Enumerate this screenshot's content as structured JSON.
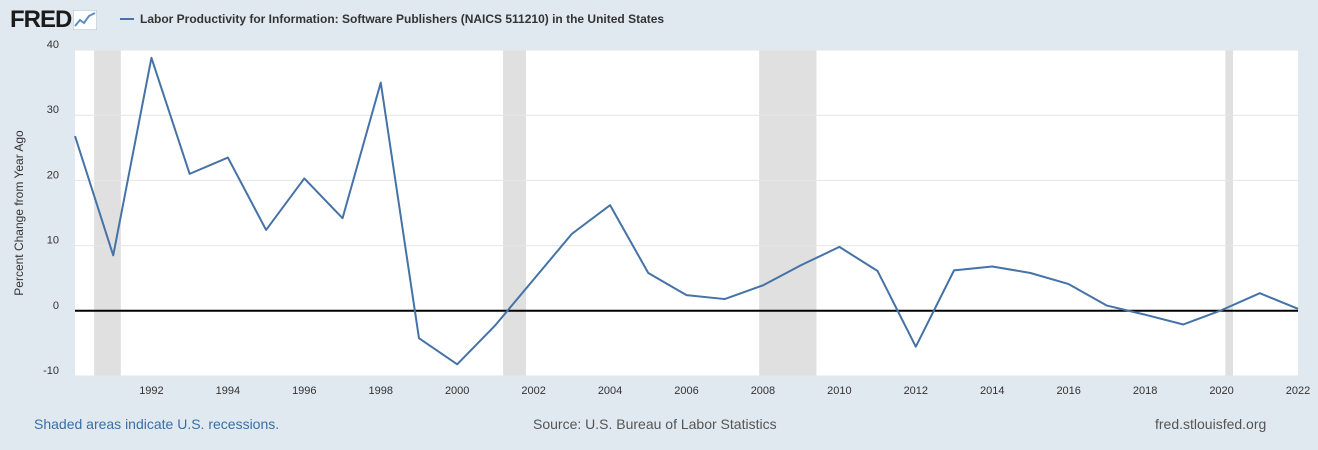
{
  "header": {
    "logo_text": "FRED",
    "logo_icon": "trend-line-icon",
    "series_title": "Labor Productivity for Information: Software Publishers (NAICS 511210) in the United States"
  },
  "footer": {
    "recessions_note": "Shaded areas indicate U.S. recessions.",
    "source": "Source: U.S. Bureau of Labor Statistics",
    "site": "fred.stlouisfed.org"
  },
  "colors": {
    "line": "#4572a7",
    "recession": "#e0e0e0",
    "zero_line": "#000000",
    "background": "#e1e9f0"
  },
  "chart_data": {
    "type": "line",
    "title": "",
    "xlabel": "",
    "ylabel": "Percent Change from Year Ago",
    "xlim": [
      1990,
      2022
    ],
    "ylim": [
      -10,
      40
    ],
    "yticks": [
      -10,
      0,
      10,
      20,
      30,
      40
    ],
    "xticks": [
      1992,
      1994,
      1996,
      1998,
      2000,
      2002,
      2004,
      2006,
      2008,
      2010,
      2012,
      2014,
      2016,
      2018,
      2020,
      2022
    ],
    "grid": true,
    "legend": "top",
    "recessions": [
      [
        1990.5,
        1991.2
      ],
      [
        2001.2,
        2001.8
      ],
      [
        2007.9,
        2009.4
      ],
      [
        2020.1,
        2020.3
      ]
    ],
    "series": [
      {
        "name": "Labor Productivity for Information: Software Publishers (NAICS 511210) in the United States",
        "x": [
          1990,
          1991,
          1992,
          1993,
          1994,
          1995,
          1996,
          1997,
          1998,
          1999,
          2000,
          2001,
          2002,
          2003,
          2004,
          2005,
          2006,
          2007,
          2008,
          2009,
          2010,
          2011,
          2012,
          2013,
          2014,
          2015,
          2016,
          2017,
          2018,
          2019,
          2020,
          2021,
          2022
        ],
        "values": [
          26.8,
          8.5,
          38.8,
          21.0,
          23.5,
          12.4,
          20.3,
          14.2,
          35.0,
          -4.2,
          -8.2,
          -2.2,
          4.8,
          11.8,
          16.2,
          5.8,
          2.4,
          1.8,
          3.9,
          7.0,
          9.8,
          6.1,
          -5.5,
          6.2,
          6.8,
          5.8,
          4.1,
          0.8,
          -0.6,
          -2.1,
          0.1,
          2.7,
          0.3
        ]
      }
    ]
  }
}
